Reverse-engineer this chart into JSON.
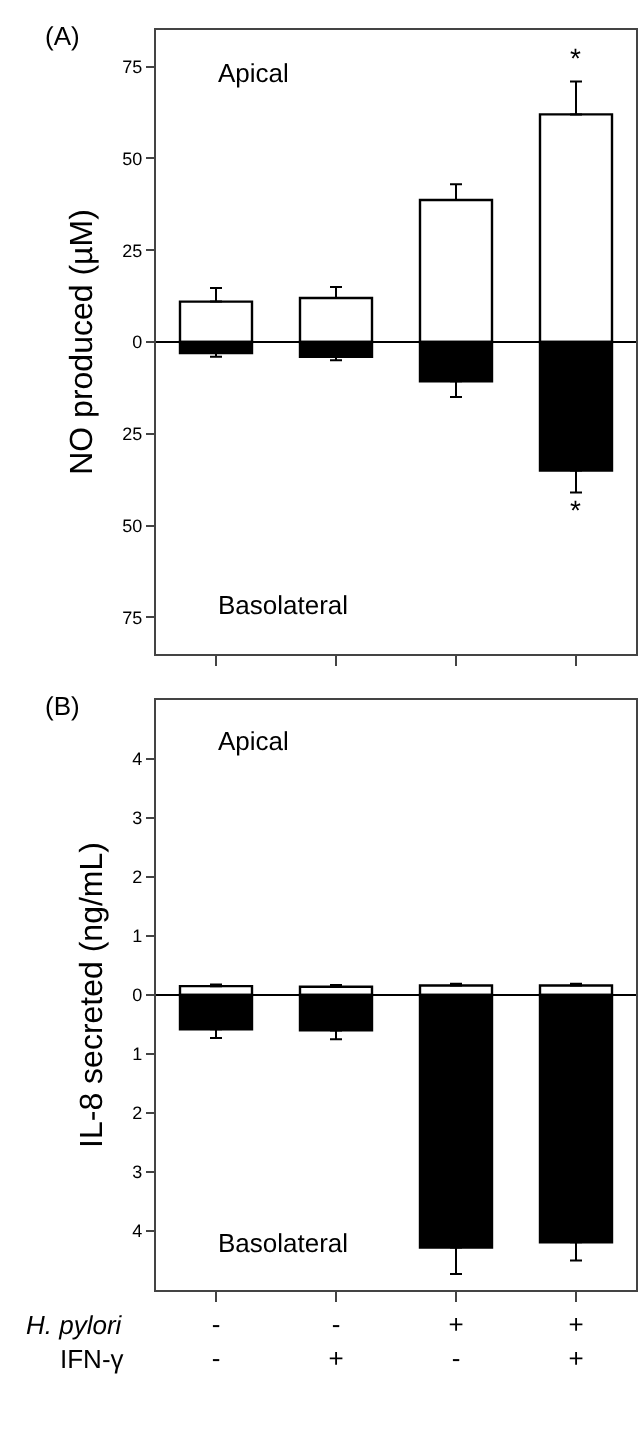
{
  "chart_data": [
    {
      "type": "bar",
      "title": "(A)",
      "ylabel": "NO produced (µM)",
      "categories": [
        null,
        null,
        null,
        null
      ],
      "series": [
        {
          "color": "#ffffff",
          "values": [
            11,
            12,
            38.7,
            62
          ],
          "errors": [
            [
              11,
              14.7
            ],
            [
              12,
              15
            ],
            [
              38.7,
              43
            ],
            [
              62,
              71
            ]
          ]
        },
        {
          "color": "#000000",
          "values": [
            -3,
            -4,
            -10.7,
            -35
          ],
          "errors": [
            [
              -4,
              -3
            ],
            [
              -5,
              -4
            ],
            [
              -15,
              -10.7
            ],
            [
              -41,
              -35
            ]
          ]
        }
      ],
      "ylim": [
        -85,
        85
      ],
      "yticks": [
        {
          "value": -75,
          "label": "75"
        },
        {
          "value": -50,
          "label": "50"
        },
        {
          "value": -25,
          "label": "25"
        },
        0,
        25,
        50,
        75
      ],
      "tick_labels": "y",
      "stacked": true,
      "ref_lines": [
        {
          "axis": "y",
          "value": 0
        }
      ],
      "annotations": [
        "Apical",
        "Basolateral",
        "*",
        "*"
      ]
    },
    {
      "type": "bar",
      "title": "(B)",
      "ylabel": "IL-8 secreted (ng/mL)",
      "categories": [
        "-\n-",
        "-\n+",
        "+\n-",
        "+\n+"
      ],
      "series": [
        {
          "color": "#ffffff",
          "values": [
            0.15,
            0.14,
            0.16,
            0.16
          ],
          "errors": [
            [
              0.15,
              0.18
            ],
            [
              0.14,
              0.17
            ],
            [
              0.16,
              0.19
            ],
            [
              0.16,
              0.19
            ]
          ]
        },
        {
          "color": "#000000",
          "values": [
            -0.58,
            -0.6,
            -4.28,
            -4.19
          ],
          "errors": [
            [
              -0.73,
              -0.58
            ],
            [
              -0.75,
              -0.6
            ],
            [
              -4.73,
              -4.28
            ],
            [
              -4.5,
              -4.19
            ]
          ]
        }
      ],
      "ylim": [
        -5,
        5
      ],
      "yticks": [
        {
          "value": -4,
          "label": "4"
        },
        {
          "value": -3,
          "label": "3"
        },
        {
          "value": -2,
          "label": "2"
        },
        {
          "value": -1,
          "label": "1"
        },
        0,
        1,
        2,
        3,
        4
      ],
      "stacked": true,
      "ref_lines": [
        {
          "axis": "y",
          "value": 0
        }
      ],
      "annotations": [
        "Apical",
        "Basolateral",
        "H. pylori",
        "IFN-γ"
      ]
    }
  ]
}
